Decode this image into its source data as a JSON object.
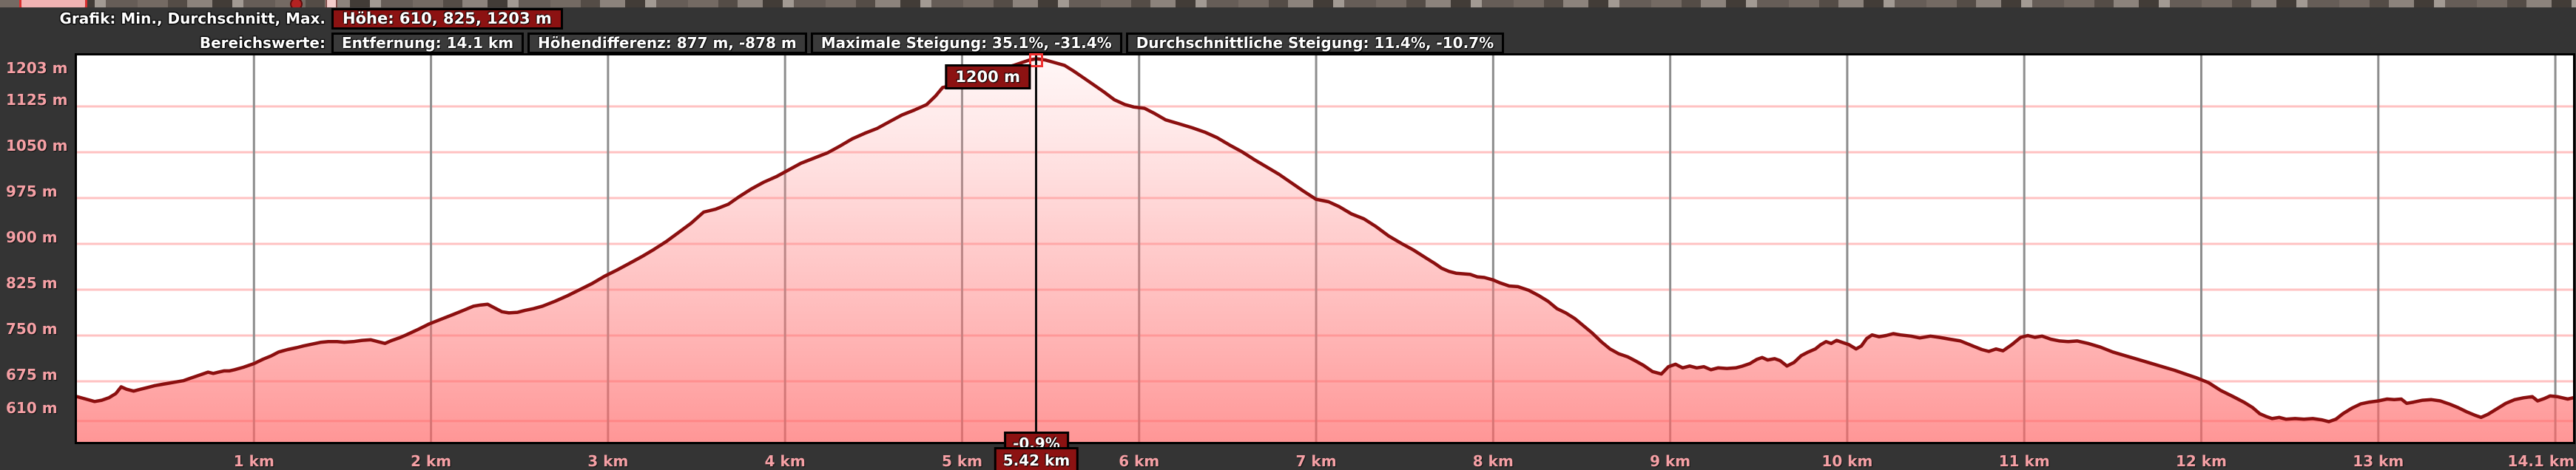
{
  "header": {
    "line1_label": "Grafik: Min., Durchschnitt, Max.",
    "hoehe_box": "Höhe: 610, 825, 1203 m",
    "line2_label": "Bereichswerte:",
    "stat_boxes": [
      "Entfernung: 14.1 km",
      "Höhendifferenz: 877 m, -878 m",
      "Maximale Steigung: 35.1%, -31.4%",
      "Durchschnittliche Steigung: 11.4%, -10.7%"
    ]
  },
  "cursor": {
    "km": 5.42,
    "elevation_label": "1200 m",
    "slope_label": "-0.9%",
    "distance_label": "5.42 km"
  },
  "axes": {
    "y_tick_labels": [
      "1203 m",
      "1125 m",
      "1050 m",
      "975 m",
      "900 m",
      "825 m",
      "750 m",
      "675 m",
      "610 m"
    ],
    "x_tick_labels": [
      "1 km",
      "2 km",
      "3 km",
      "4 km",
      "5 km",
      "6 km",
      "7 km",
      "8 km",
      "9 km",
      "10 km",
      "11 km",
      "12 km",
      "13 km",
      "14.1 km"
    ]
  },
  "colors": {
    "panel_bg": "#343434",
    "plot_bg": "#ffffff",
    "h_grid": "#ffc2c2",
    "v_grid": "#8d8d8d",
    "curve": "#8b0f0f",
    "fill_bottom": "#ff9e9e",
    "tick_text": "#f5a0a5",
    "badge_bg": "#8c1212",
    "cursor_marker": "#f23030"
  },
  "chart_data": {
    "type": "area",
    "title": "Grafik: Min., Durchschnitt, Max.",
    "xlabel": "km",
    "ylabel": "m",
    "xlim": [
      0,
      14.1
    ],
    "ylim": [
      576,
      1212
    ],
    "grid": true,
    "y_ticks_m": [
      1203,
      1125,
      1050,
      975,
      900,
      825,
      750,
      675,
      610
    ],
    "x_ticks_km": [
      1,
      2,
      3,
      4,
      5,
      6,
      7,
      8,
      9,
      10,
      11,
      12,
      13,
      14.1
    ],
    "stats": {
      "min_m": 610,
      "avg_m": 825,
      "max_m": 1203,
      "distance_km": 14.1,
      "ascent_m": 877,
      "descent_m": -878,
      "max_slope_pct": 35.1,
      "min_slope_pct": -31.4,
      "avg_slope_up_pct": 11.4,
      "avg_slope_down_pct": -10.7
    },
    "cursor_point": {
      "km": 5.42,
      "elevation_m": 1200,
      "slope_pct": -0.9
    },
    "x_km": [
      0,
      0.05,
      0.1,
      0.14,
      0.18,
      0.22,
      0.25,
      0.28,
      0.32,
      0.36,
      0.4,
      0.44,
      0.48,
      0.52,
      0.56,
      0.6,
      0.64,
      0.68,
      0.71,
      0.74,
      0.77,
      0.8,
      0.83,
      0.86,
      0.89,
      0.94,
      1,
      1.05,
      1.1,
      1.14,
      1.19,
      1.24,
      1.28,
      1.33,
      1.38,
      1.42,
      1.47,
      1.51,
      1.56,
      1.61,
      1.66,
      1.7,
      1.74,
      1.78,
      1.82,
      1.86,
      1.92,
      1.99,
      2.06,
      2.13,
      2.19,
      2.24,
      2.28,
      2.32,
      2.36,
      2.4,
      2.44,
      2.49,
      2.53,
      2.58,
      2.63,
      2.7,
      2.77,
      2.84,
      2.91,
      2.98,
      3.05,
      3.12,
      3.19,
      3.26,
      3.33,
      3.4,
      3.47,
      3.54,
      3.61,
      3.68,
      3.74,
      3.81,
      3.88,
      3.95,
      4.02,
      4.09,
      4.17,
      4.24,
      4.31,
      4.38,
      4.45,
      4.52,
      4.59,
      4.66,
      4.73,
      4.8,
      4.85,
      4.89,
      4.95,
      5,
      5.05,
      5.09,
      5.12,
      5.16,
      5.2,
      5.24,
      5.29,
      5.34,
      5.38,
      5.42,
      5.47,
      5.52,
      5.58,
      5.63,
      5.68,
      5.74,
      5.8,
      5.86,
      5.92,
      5.97,
      6.03,
      6.09,
      6.15,
      6.22,
      6.3,
      6.37,
      6.44,
      6.51,
      6.58,
      6.65,
      6.72,
      6.79,
      6.86,
      6.93,
      7,
      7.07,
      7.13,
      7.2,
      7.27,
      7.34,
      7.41,
      7.48,
      7.55,
      7.62,
      7.67,
      7.71,
      7.75,
      7.79,
      7.83,
      7.87,
      7.91,
      7.95,
      8,
      8.04,
      8.09,
      8.14,
      8.2,
      8.26,
      8.31,
      8.36,
      8.41,
      8.46,
      8.51,
      8.56,
      8.61,
      8.66,
      8.71,
      8.76,
      8.8,
      8.85,
      8.9,
      8.95,
      8.99,
      9.03,
      9.07,
      9.11,
      9.15,
      9.19,
      9.23,
      9.27,
      9.32,
      9.37,
      9.41,
      9.45,
      9.49,
      9.52,
      9.55,
      9.59,
      9.62,
      9.66,
      9.7,
      9.74,
      9.78,
      9.82,
      9.85,
      9.88,
      9.91,
      9.94,
      9.97,
      10.01,
      10.05,
      10.08,
      10.11,
      10.14,
      10.18,
      10.22,
      10.26,
      10.3,
      10.36,
      10.41,
      10.47,
      10.52,
      10.58,
      10.64,
      10.7,
      10.76,
      10.8,
      10.84,
      10.88,
      10.93,
      10.98,
      11.02,
      11.06,
      11.1,
      11.15,
      11.2,
      11.25,
      11.3,
      11.36,
      11.43,
      11.5,
      11.57,
      11.64,
      11.71,
      11.78,
      11.85,
      11.91,
      11.97,
      12.04,
      12.11,
      12.18,
      12.24,
      12.29,
      12.33,
      12.37,
      12.4,
      12.44,
      12.48,
      12.53,
      12.58,
      12.63,
      12.68,
      12.72,
      12.76,
      12.8,
      12.85,
      12.9,
      12.95,
      13,
      13.05,
      13.09,
      13.13,
      13.16,
      13.2,
      13.25,
      13.3,
      13.35,
      13.4,
      13.45,
      13.5,
      13.55,
      13.58,
      13.62,
      13.67,
      13.72,
      13.77,
      13.82,
      13.87,
      13.9,
      13.94,
      13.97,
      14.01,
      14.04,
      14.07,
      14.1
    ],
    "elevation_m": [
      650,
      646,
      642,
      644,
      648,
      655,
      666,
      662,
      659,
      662,
      665,
      668,
      670,
      672,
      674,
      676,
      680,
      684,
      687,
      690,
      688,
      690,
      692,
      692,
      694,
      698,
      704,
      711,
      717,
      723,
      727,
      730,
      733,
      736,
      739,
      740,
      740,
      739,
      740,
      742,
      743,
      740,
      737,
      742,
      746,
      751,
      759,
      769,
      777,
      785,
      792,
      798,
      800,
      801,
      795,
      789,
      787,
      788,
      791,
      794,
      798,
      806,
      815,
      825,
      835,
      847,
      857,
      868,
      879,
      891,
      904,
      919,
      934,
      952,
      957,
      965,
      977,
      990,
      1001,
      1010,
      1021,
      1032,
      1041,
      1049,
      1060,
      1072,
      1081,
      1089,
      1100,
      1111,
      1119,
      1128,
      1142,
      1156,
      1160,
      1162,
      1164,
      1165,
      1158,
      1166,
      1176,
      1188,
      1192,
      1197,
      1201,
      1203,
      1201,
      1197,
      1192,
      1183,
      1173,
      1161,
      1149,
      1136,
      1128,
      1124,
      1122,
      1113,
      1103,
      1097,
      1090,
      1083,
      1074,
      1062,
      1051,
      1038,
      1026,
      1014,
      1000,
      986,
      973,
      969,
      961,
      949,
      941,
      928,
      913,
      901,
      890,
      877,
      868,
      860,
      855,
      852,
      851,
      850,
      846,
      845,
      841,
      836,
      831,
      830,
      824,
      815,
      806,
      794,
      787,
      778,
      766,
      754,
      740,
      728,
      720,
      715,
      709,
      701,
      691,
      687,
      699,
      703,
      697,
      700,
      697,
      699,
      694,
      697,
      696,
      697,
      700,
      704,
      711,
      714,
      710,
      712,
      709,
      700,
      706,
      717,
      723,
      728,
      735,
      740,
      737,
      742,
      739,
      735,
      728,
      733,
      745,
      751,
      748,
      750,
      753,
      751,
      749,
      746,
      749,
      747,
      744,
      741,
      734,
      727,
      724,
      728,
      725,
      735,
      747,
      750,
      747,
      749,
      744,
      741,
      740,
      741,
      737,
      731,
      723,
      717,
      711,
      705,
      699,
      693,
      687,
      681,
      673,
      660,
      650,
      641,
      632,
      622,
      617,
      614,
      616,
      613,
      614,
      613,
      614,
      612,
      609,
      613,
      622,
      631,
      638,
      641,
      643,
      646,
      645,
      646,
      639,
      641,
      644,
      645,
      643,
      638,
      632,
      625,
      619,
      616,
      621,
      630,
      639,
      645,
      648,
      650,
      643,
      647,
      651,
      650,
      648,
      646,
      648
    ]
  }
}
